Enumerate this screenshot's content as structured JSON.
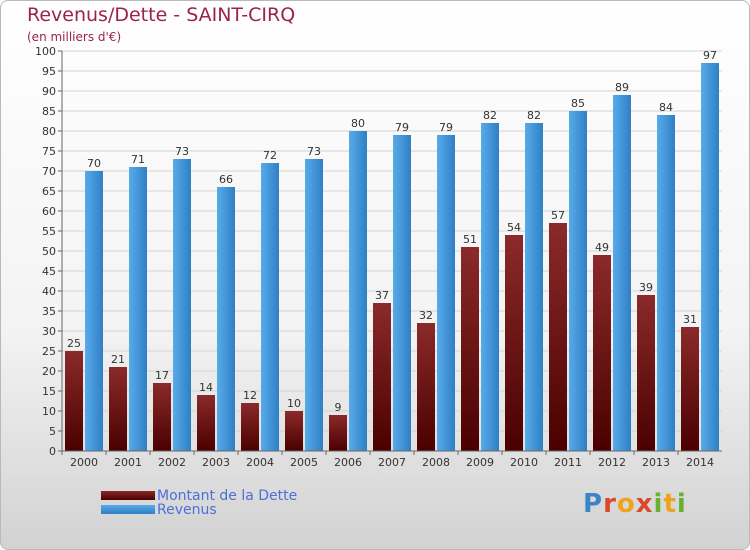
{
  "header": {
    "title": "Revenus/Dette - SAINT-CIRQ",
    "subtitle": "(en milliers d'€)"
  },
  "legend": {
    "items": [
      {
        "label": "Montant de la Dette",
        "color": "#6e1a1a"
      },
      {
        "label": "Revenus",
        "color": "#4a9de0"
      }
    ]
  },
  "logo": {
    "text": "Proxiti"
  },
  "chart_data": {
    "type": "bar",
    "title": "Revenus/Dette - SAINT-CIRQ",
    "ylabel": "(en milliers d'€)",
    "xlabel": "",
    "categories": [
      "2000",
      "2001",
      "2002",
      "2003",
      "2004",
      "2005",
      "2006",
      "2007",
      "2008",
      "2009",
      "2010",
      "2011",
      "2012",
      "2013",
      "2014"
    ],
    "series": [
      {
        "name": "Montant de la Dette",
        "values": [
          25,
          21,
          17,
          14,
          12,
          10,
          9,
          37,
          32,
          51,
          54,
          57,
          49,
          39,
          31
        ],
        "color": "#6e1a1a"
      },
      {
        "name": "Revenus",
        "values": [
          70,
          71,
          73,
          66,
          72,
          73,
          80,
          79,
          79,
          82,
          82,
          85,
          89,
          84,
          97
        ],
        "color": "#4a9de0"
      }
    ],
    "ylim": [
      0,
      100
    ],
    "yticks": [
      0,
      5,
      10,
      15,
      20,
      25,
      30,
      35,
      40,
      45,
      50,
      55,
      60,
      65,
      70,
      75,
      80,
      85,
      90,
      95,
      100
    ],
    "grid": true,
    "legend_position": "bottom-left",
    "data_labels": true
  }
}
